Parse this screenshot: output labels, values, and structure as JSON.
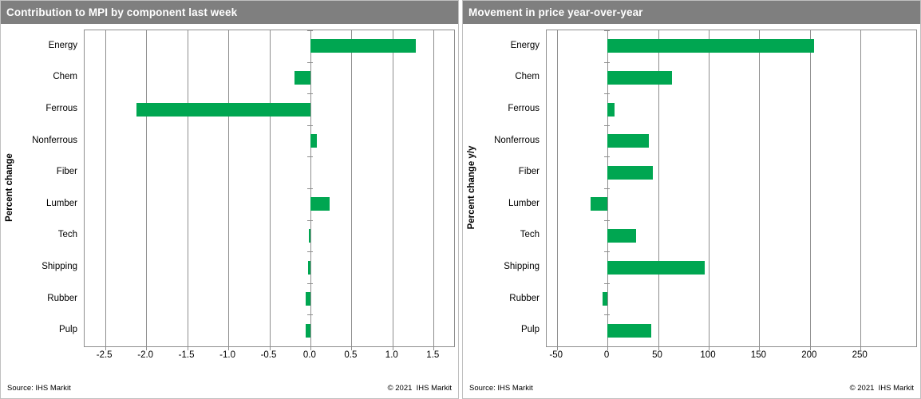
{
  "colors": {
    "bar_green": "#00A651",
    "header_gray": "#7f7f7f",
    "grid_gray": "#8e8e8e"
  },
  "chart_data": [
    {
      "type": "bar",
      "orientation": "horizontal",
      "title": "Contribution to MPI by component last week",
      "ylabel": "Percent change",
      "categories": [
        "Energy",
        "Chem",
        "Ferrous",
        "Nonferrous",
        "Fiber",
        "Lumber",
        "Tech",
        "Shipping",
        "Rubber",
        "Pulp"
      ],
      "values": [
        1.28,
        -0.19,
        -2.12,
        0.08,
        0,
        0.23,
        -0.02,
        -0.03,
        -0.06,
        -0.06
      ],
      "xlim": [
        -2.75,
        1.75
      ],
      "xticks": [
        -2.5,
        -2.0,
        -1.5,
        -1.0,
        -0.5,
        0.0,
        0.5,
        1.0,
        1.5
      ],
      "xtick_labels": [
        "-2.5",
        "-2.0",
        "-1.5",
        "-1.0",
        "-0.5",
        "0.0",
        "0.5",
        "1.0",
        "1.5"
      ],
      "grid": true,
      "legend": "none",
      "source": "Source: IHS Markit",
      "copyright": "© 2021  IHS Markit"
    },
    {
      "type": "bar",
      "orientation": "horizontal",
      "title": "Movement in price year-over-year",
      "ylabel": "Percent change y/y",
      "categories": [
        "Energy",
        "Chem",
        "Ferrous",
        "Nonferrous",
        "Fiber",
        "Lumber",
        "Tech",
        "Shipping",
        "Rubber",
        "Pulp"
      ],
      "values": [
        204,
        64,
        7,
        41,
        45,
        -17,
        28,
        96,
        -5,
        43
      ],
      "xlim": [
        -60,
        305
      ],
      "xticks": [
        -50,
        0,
        50,
        100,
        150,
        200,
        250
      ],
      "xtick_labels": [
        "-50",
        "0",
        "50",
        "100",
        "150",
        "200",
        "250"
      ],
      "grid": true,
      "legend": "none",
      "source": "Source: IHS Markit",
      "copyright": "© 2021  IHS Markit"
    }
  ]
}
